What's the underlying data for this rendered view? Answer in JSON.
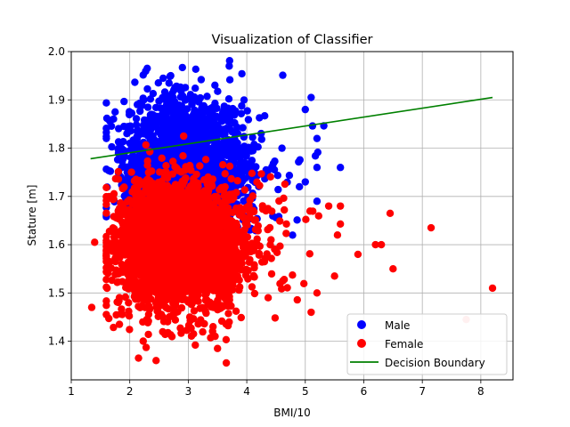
{
  "chart_data": {
    "type": "scatter",
    "title": "Visualization of Classifier",
    "xlabel": "BMI/10",
    "ylabel": "Stature [m]",
    "xlim": [
      1.0,
      8.55
    ],
    "ylim": [
      1.32,
      2.0
    ],
    "xticks": [
      "1",
      "2",
      "3",
      "4",
      "5",
      "6",
      "7",
      "8"
    ],
    "yticks": [
      "1.4",
      "1.5",
      "1.6",
      "1.7",
      "1.8",
      "1.9",
      "2.0"
    ],
    "grid": true,
    "legend_position": "lower-right",
    "series": [
      {
        "name": "Male",
        "color": "#0000ff",
        "approx_points": 2200,
        "x_center": 2.85,
        "x_spread": 0.45,
        "y_center": 1.77,
        "y_spread": 0.065,
        "outliers": [
          [
            3.7,
            1.97
          ],
          [
            2.7,
            1.95
          ],
          [
            5.1,
            1.905
          ],
          [
            5.0,
            1.88
          ],
          [
            5.2,
            1.82
          ],
          [
            5.2,
            1.76
          ],
          [
            5.6,
            1.76
          ],
          [
            5.0,
            1.73
          ],
          [
            5.2,
            1.69
          ],
          [
            4.9,
            1.72
          ],
          [
            1.75,
            1.875
          ],
          [
            1.6,
            1.82
          ]
        ]
      },
      {
        "name": "Female",
        "color": "#ff0000",
        "approx_points": 3000,
        "x_center": 2.75,
        "x_spread": 0.5,
        "y_center": 1.6,
        "y_spread": 0.065,
        "outliers": [
          [
            8.2,
            1.51
          ],
          [
            7.15,
            1.635
          ],
          [
            6.45,
            1.665
          ],
          [
            6.3,
            1.6
          ],
          [
            6.2,
            1.6
          ],
          [
            6.5,
            1.55
          ],
          [
            5.9,
            1.58
          ],
          [
            5.6,
            1.68
          ],
          [
            5.55,
            1.62
          ],
          [
            5.4,
            1.68
          ],
          [
            1.4,
            1.605
          ],
          [
            1.35,
            1.47
          ],
          [
            2.15,
            1.365
          ],
          [
            2.45,
            1.36
          ],
          [
            3.65,
            1.355
          ],
          [
            3.5,
            1.385
          ],
          [
            5.1,
            1.46
          ],
          [
            5.2,
            1.5
          ],
          [
            5.5,
            1.535
          ]
        ]
      }
    ],
    "decision_boundary": {
      "name": "Decision Boundary",
      "color": "#008000",
      "x": [
        1.33,
        8.2
      ],
      "y": [
        1.778,
        1.905
      ]
    },
    "faded_point": {
      "x": 7.75,
      "y": 1.445,
      "color": "#ff9999"
    }
  }
}
